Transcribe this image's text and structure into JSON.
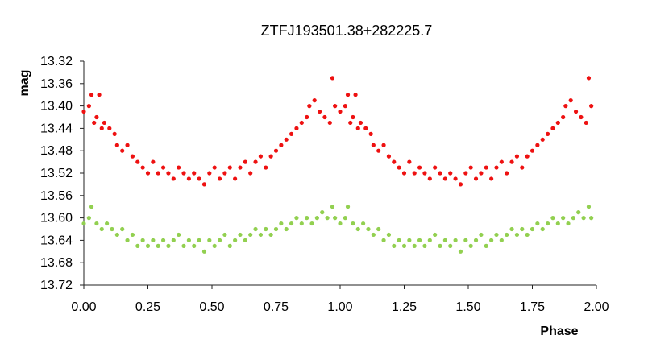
{
  "chart_data": {
    "type": "scatter",
    "title": "ZTFJ193501.38+282225.7",
    "xlabel": "Phase",
    "ylabel": "mag",
    "xlim": [
      0,
      2
    ],
    "ylim": [
      13.32,
      13.72
    ],
    "y_reversed": true,
    "x_ticks": [
      "0.00",
      "0.25",
      "0.50",
      "0.75",
      "1.00",
      "1.25",
      "1.50",
      "1.75",
      "2.00"
    ],
    "y_ticks": [
      "13.32",
      "13.36",
      "13.40",
      "13.44",
      "13.48",
      "13.52",
      "13.56",
      "13.60",
      "13.64",
      "13.68",
      "13.72"
    ],
    "grid": false,
    "legend": "none",
    "series": [
      {
        "color": "#ee1111",
        "phase_points": [
          [
            0.0,
            13.41
          ],
          [
            0.02,
            13.4
          ],
          [
            0.03,
            13.38
          ],
          [
            0.04,
            13.43
          ],
          [
            0.05,
            13.42
          ],
          [
            0.06,
            13.38
          ],
          [
            0.07,
            13.44
          ],
          [
            0.08,
            13.43
          ],
          [
            0.1,
            13.44
          ],
          [
            0.12,
            13.45
          ],
          [
            0.13,
            13.47
          ],
          [
            0.15,
            13.48
          ],
          [
            0.17,
            13.47
          ],
          [
            0.19,
            13.49
          ],
          [
            0.21,
            13.5
          ],
          [
            0.23,
            13.51
          ],
          [
            0.25,
            13.52
          ],
          [
            0.27,
            13.5
          ],
          [
            0.29,
            13.52
          ],
          [
            0.31,
            13.51
          ],
          [
            0.33,
            13.52
          ],
          [
            0.35,
            13.53
          ],
          [
            0.37,
            13.51
          ],
          [
            0.39,
            13.52
          ],
          [
            0.41,
            13.53
          ],
          [
            0.43,
            13.52
          ],
          [
            0.45,
            13.53
          ],
          [
            0.47,
            13.54
          ],
          [
            0.49,
            13.52
          ],
          [
            0.51,
            13.51
          ],
          [
            0.53,
            13.53
          ],
          [
            0.55,
            13.52
          ],
          [
            0.57,
            13.51
          ],
          [
            0.59,
            13.53
          ],
          [
            0.61,
            13.51
          ],
          [
            0.63,
            13.5
          ],
          [
            0.65,
            13.52
          ],
          [
            0.67,
            13.5
          ],
          [
            0.69,
            13.49
          ],
          [
            0.71,
            13.51
          ],
          [
            0.73,
            13.49
          ],
          [
            0.75,
            13.48
          ],
          [
            0.77,
            13.47
          ],
          [
            0.79,
            13.46
          ],
          [
            0.81,
            13.45
          ],
          [
            0.83,
            13.44
          ],
          [
            0.85,
            13.43
          ],
          [
            0.87,
            13.42
          ],
          [
            0.88,
            13.4
          ],
          [
            0.9,
            13.39
          ],
          [
            0.92,
            13.41
          ],
          [
            0.94,
            13.42
          ],
          [
            0.96,
            13.43
          ],
          [
            0.97,
            13.35
          ],
          [
            0.98,
            13.4
          ]
        ]
      },
      {
        "color": "#92d050",
        "phase_points": [
          [
            0.0,
            13.61
          ],
          [
            0.02,
            13.6
          ],
          [
            0.03,
            13.58
          ],
          [
            0.05,
            13.61
          ],
          [
            0.07,
            13.62
          ],
          [
            0.09,
            13.61
          ],
          [
            0.11,
            13.62
          ],
          [
            0.13,
            13.63
          ],
          [
            0.15,
            13.62
          ],
          [
            0.17,
            13.64
          ],
          [
            0.19,
            13.63
          ],
          [
            0.21,
            13.65
          ],
          [
            0.23,
            13.64
          ],
          [
            0.25,
            13.65
          ],
          [
            0.27,
            13.64
          ],
          [
            0.29,
            13.65
          ],
          [
            0.31,
            13.64
          ],
          [
            0.33,
            13.65
          ],
          [
            0.35,
            13.64
          ],
          [
            0.37,
            13.63
          ],
          [
            0.39,
            13.65
          ],
          [
            0.41,
            13.64
          ],
          [
            0.43,
            13.65
          ],
          [
            0.45,
            13.64
          ],
          [
            0.47,
            13.66
          ],
          [
            0.49,
            13.64
          ],
          [
            0.51,
            13.65
          ],
          [
            0.53,
            13.64
          ],
          [
            0.55,
            13.63
          ],
          [
            0.57,
            13.65
          ],
          [
            0.59,
            13.64
          ],
          [
            0.61,
            13.63
          ],
          [
            0.63,
            13.64
          ],
          [
            0.65,
            13.63
          ],
          [
            0.67,
            13.62
          ],
          [
            0.69,
            13.63
          ],
          [
            0.71,
            13.62
          ],
          [
            0.73,
            13.63
          ],
          [
            0.75,
            13.62
          ],
          [
            0.77,
            13.61
          ],
          [
            0.79,
            13.62
          ],
          [
            0.81,
            13.61
          ],
          [
            0.83,
            13.6
          ],
          [
            0.85,
            13.61
          ],
          [
            0.87,
            13.6
          ],
          [
            0.89,
            13.61
          ],
          [
            0.91,
            13.6
          ],
          [
            0.93,
            13.59
          ],
          [
            0.95,
            13.6
          ],
          [
            0.97,
            13.58
          ],
          [
            0.98,
            13.6
          ]
        ]
      }
    ]
  }
}
